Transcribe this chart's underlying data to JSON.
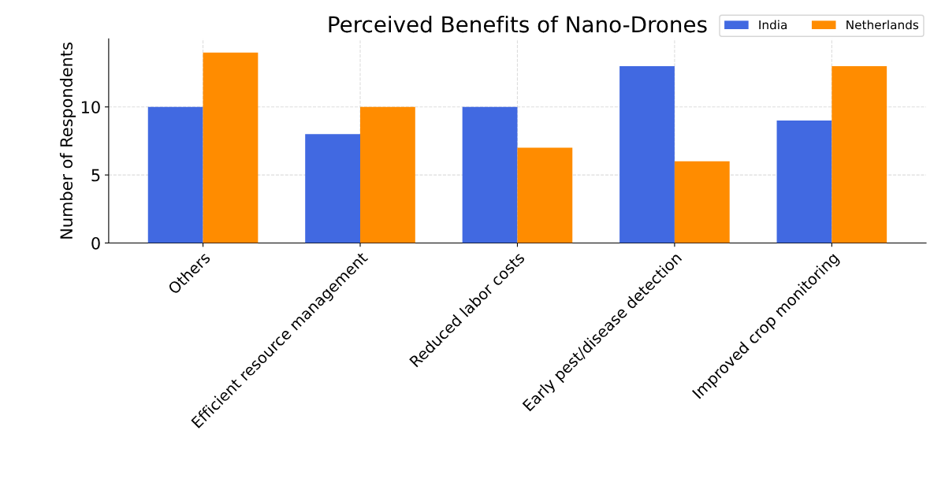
{
  "chart_data": {
    "type": "bar",
    "title": "Perceived Benefits of Nano-Drones",
    "ylabel": "Number of Respondents",
    "categories": [
      "Others",
      "Efficient resource management",
      "Reduced labor costs",
      "Early pest/disease detection",
      "Improved crop monitoring"
    ],
    "series": [
      {
        "name": "India",
        "color": "#4169e1",
        "values": [
          10,
          8,
          10,
          13,
          9
        ]
      },
      {
        "name": "Netherlands",
        "color": "#ff8c00",
        "values": [
          14,
          10,
          7,
          6,
          13
        ]
      }
    ],
    "ylim": [
      0,
      15
    ],
    "yticks": [
      0,
      5,
      10
    ],
    "grid": true,
    "legend": "top right"
  }
}
